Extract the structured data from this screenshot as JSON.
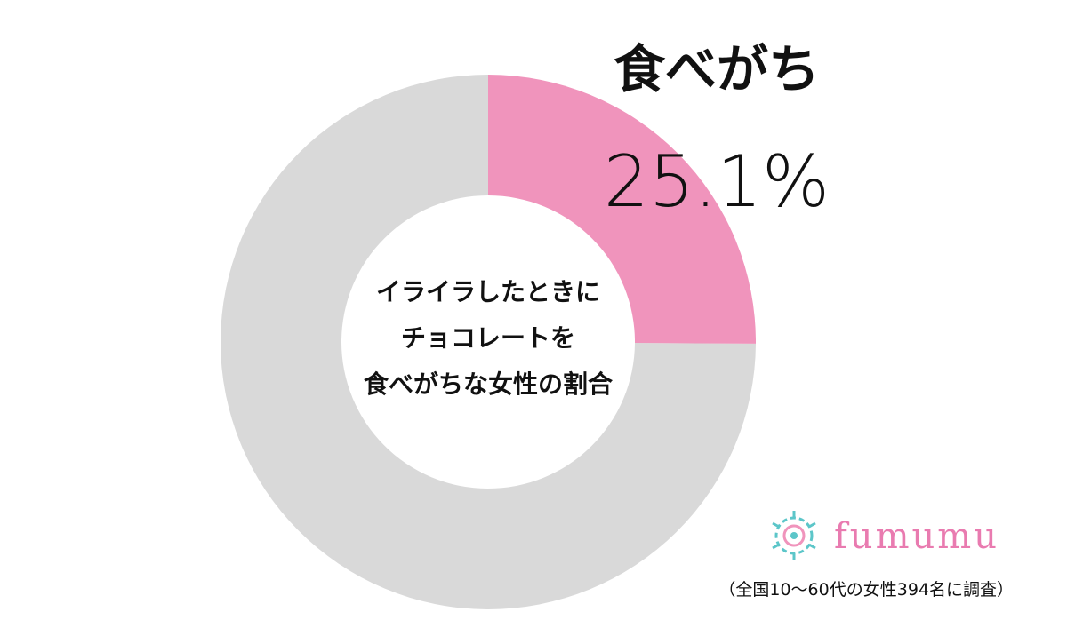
{
  "chart_data": {
    "type": "donut",
    "categories": [
      "食べがち",
      null
    ],
    "values": [
      25.1,
      74.9
    ],
    "value_labels": [
      "25.1%",
      null
    ],
    "colors": [
      "#f094bc",
      "#d9d9d9"
    ],
    "center_text": [
      "イライラしたときに",
      "チョコレートを",
      "食べがちな女性の割合"
    ]
  },
  "logo": "fumumu",
  "note": "（全国10～60代の女性394名に調査）"
}
